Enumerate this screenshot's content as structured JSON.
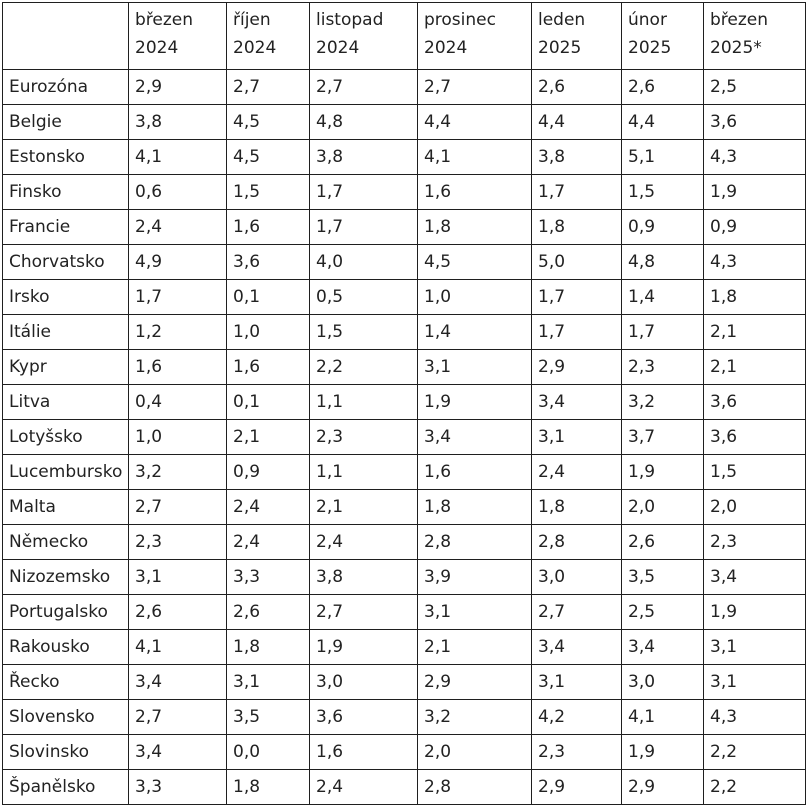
{
  "columns": [
    {
      "line1": "",
      "line2": ""
    },
    {
      "line1": "březen",
      "line2": "2024"
    },
    {
      "line1": "říjen",
      "line2": "2024"
    },
    {
      "line1": "listopad",
      "line2": "2024"
    },
    {
      "line1": "prosinec",
      "line2": "2024"
    },
    {
      "line1": "leden",
      "line2": "2025"
    },
    {
      "line1": "únor",
      "line2": "2025"
    },
    {
      "line1": "březen",
      "line2": "2025*"
    }
  ],
  "rows": [
    [
      "Eurozóna",
      "2,9",
      "2,7",
      "2,7",
      "2,7",
      "2,6",
      "2,6",
      "2,5"
    ],
    [
      "Belgie",
      "3,8",
      "4,5",
      "4,8",
      "4,4",
      "4,4",
      "4,4",
      "3,6"
    ],
    [
      "Estonsko",
      "4,1",
      "4,5",
      "3,8",
      "4,1",
      "3,8",
      "5,1",
      "4,3"
    ],
    [
      "Finsko",
      "0,6",
      "1,5",
      "1,7",
      "1,6",
      "1,7",
      "1,5",
      "1,9"
    ],
    [
      "Francie",
      "2,4",
      "1,6",
      "1,7",
      "1,8",
      "1,8",
      "0,9",
      "0,9"
    ],
    [
      "Chorvatsko",
      "4,9",
      "3,6",
      "4,0",
      "4,5",
      "5,0",
      "4,8",
      "4,3"
    ],
    [
      "Irsko",
      "1,7",
      "0,1",
      "0,5",
      "1,0",
      "1,7",
      "1,4",
      "1,8"
    ],
    [
      "Itálie",
      "1,2",
      "1,0",
      "1,5",
      "1,4",
      "1,7",
      "1,7",
      "2,1"
    ],
    [
      "Kypr",
      "1,6",
      "1,6",
      "2,2",
      "3,1",
      "2,9",
      "2,3",
      "2,1"
    ],
    [
      "Litva",
      "0,4",
      "0,1",
      "1,1",
      "1,9",
      "3,4",
      "3,2",
      "3,6"
    ],
    [
      "Lotyšsko",
      "1,0",
      "2,1",
      "2,3",
      "3,4",
      "3,1",
      "3,7",
      "3,6"
    ],
    [
      "Lucembursko",
      "3,2",
      "0,9",
      "1,1",
      "1,6",
      "2,4",
      "1,9",
      "1,5"
    ],
    [
      "Malta",
      "2,7",
      "2,4",
      "2,1",
      "1,8",
      "1,8",
      "2,0",
      "2,0"
    ],
    [
      "Německo",
      "2,3",
      "2,4",
      "2,4",
      "2,8",
      "2,8",
      "2,6",
      "2,3"
    ],
    [
      "Nizozemsko",
      "3,1",
      "3,3",
      "3,8",
      "3,9",
      "3,0",
      "3,5",
      "3,4"
    ],
    [
      "Portugalsko",
      "2,6",
      "2,6",
      "2,7",
      "3,1",
      "2,7",
      "2,5",
      "1,9"
    ],
    [
      "Rakousko",
      "4,1",
      "1,8",
      "1,9",
      "2,1",
      "3,4",
      "3,4",
      "3,1"
    ],
    [
      "Řecko",
      "3,4",
      "3,1",
      "3,0",
      "2,9",
      "3,1",
      "3,0",
      "3,1"
    ],
    [
      "Slovensko",
      "2,7",
      "3,5",
      "3,6",
      "3,2",
      "4,2",
      "4,1",
      "4,3"
    ],
    [
      "Slovinsko",
      "3,4",
      "0,0",
      "1,6",
      "2,0",
      "2,3",
      "1,9",
      "2,2"
    ],
    [
      "Španělsko",
      "3,3",
      "1,8",
      "2,4",
      "2,8",
      "2,9",
      "2,9",
      "2,2"
    ]
  ]
}
